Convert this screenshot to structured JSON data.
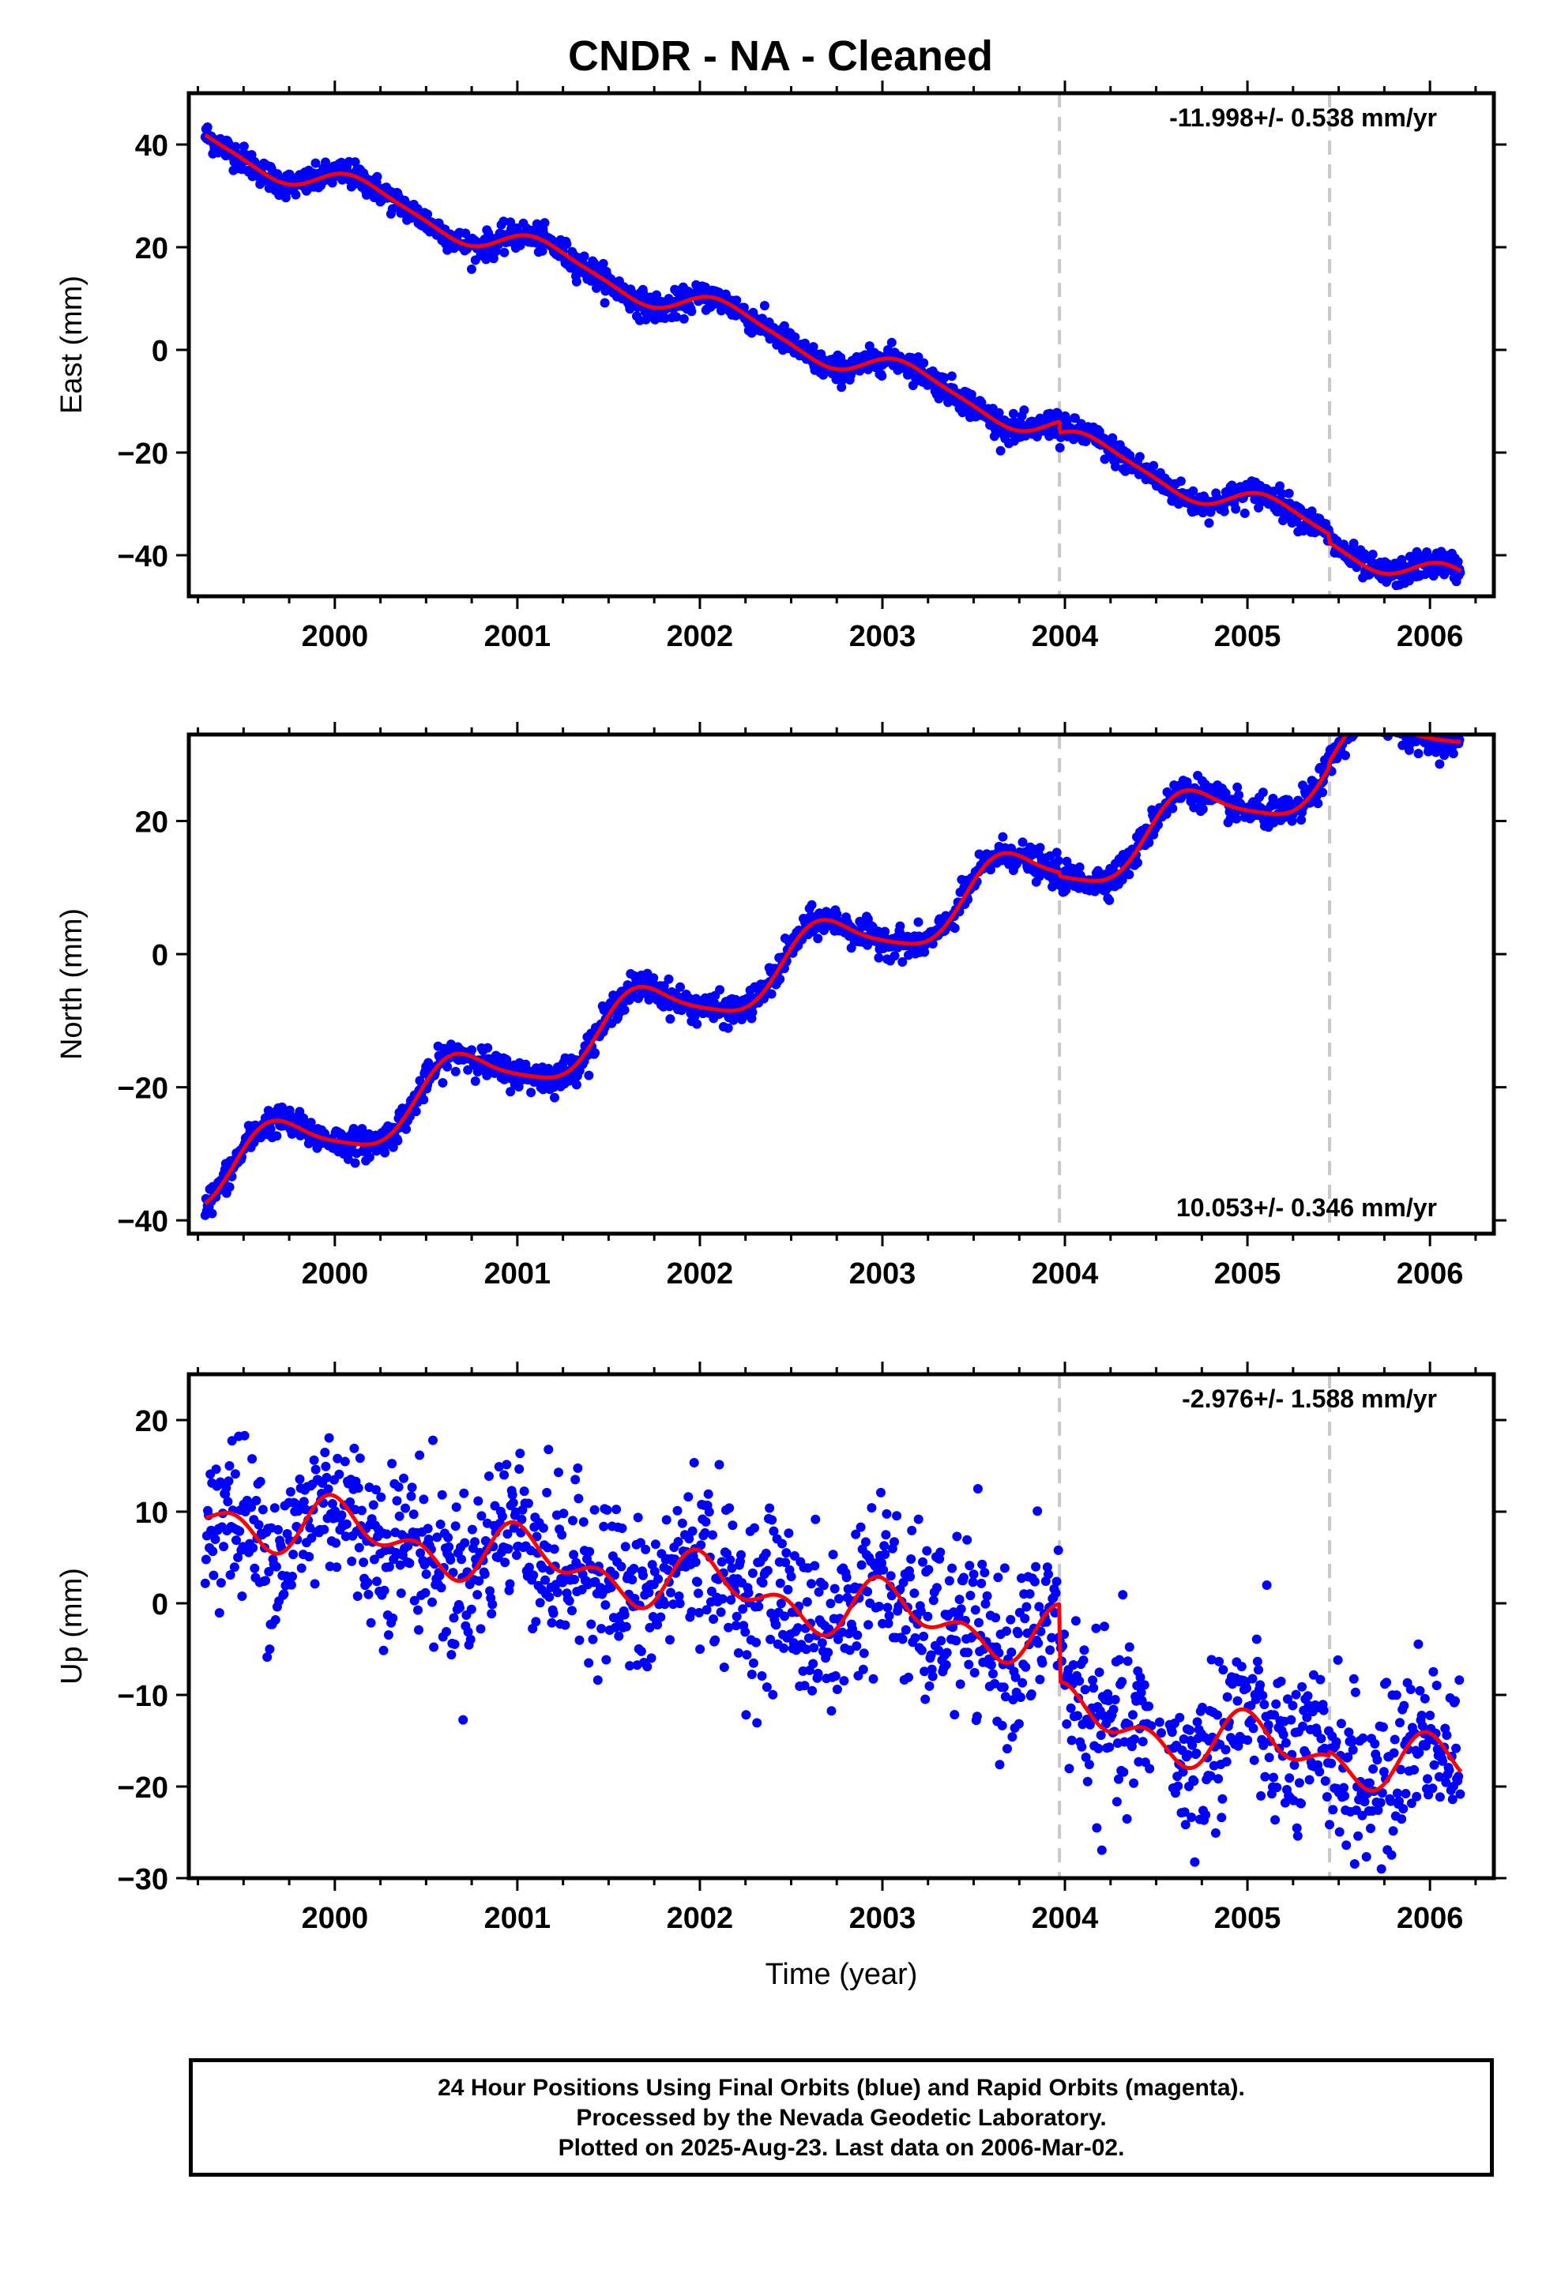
{
  "title": "CNDR  - NA - Cleaned",
  "footer": {
    "line1": "24 Hour Positions Using Final Orbits (blue) and Rapid Orbits (magenta).",
    "line2": "Processed by the Nevada Geodetic Laboratory.",
    "line3": "Plotted on 2025-Aug-23. Last data on 2006-Mar-02."
  },
  "colors": {
    "data": "#0000ff",
    "model": "#ff0000",
    "event_lines": "#c8c8c8",
    "axes": "#000000"
  },
  "chart_data": [
    {
      "type": "scatter",
      "component": "east",
      "ylabel": "East (mm)",
      "xlim": [
        1999.2,
        2006.35
      ],
      "ylim": [
        -48,
        50
      ],
      "yticks": [
        -40,
        -20,
        0,
        20,
        40
      ],
      "xticks": [
        2000,
        2001,
        2002,
        2003,
        2004,
        2005,
        2006
      ],
      "rate_label": "-11.998+/- 0.538 mm/yr",
      "rate_position": "top-right",
      "event_lines": [
        2003.97,
        2005.45
      ],
      "trend": {
        "rate": -12.0,
        "t0": 1999.3,
        "intercept": 40.5,
        "annual_amp": 2.8,
        "annual_phase": 0.6,
        "semiannual_amp": 0.6,
        "semiannual_phase": 1.2,
        "offsets": [
          [
            2003.97,
            -2.2
          ],
          [
            2005.45,
            -1.6
          ]
        ]
      },
      "noise_sd": 1.3,
      "x_start": 1999.29,
      "x_end": 2006.17,
      "n_points": 1650
    },
    {
      "type": "scatter",
      "component": "north",
      "ylabel": "North (mm)",
      "xlim": [
        1999.2,
        2006.35
      ],
      "ylim": [
        -42,
        33
      ],
      "yticks": [
        -40,
        -20,
        0,
        20
      ],
      "xticks": [
        2000,
        2001,
        2002,
        2003,
        2004,
        2005,
        2006
      ],
      "rate_label": "10.053+/- 0.346 mm/yr",
      "rate_position": "bottom-right",
      "event_lines": [
        2003.97,
        2005.45
      ],
      "trend": {
        "rate": 10.05,
        "t0": 1999.3,
        "intercept": -33.5,
        "annual_amp": 4.3,
        "annual_phase": 3.6,
        "semiannual_amp": 0.8,
        "semiannual_phase": 0.4,
        "offsets": [
          [
            2003.97,
            -0.6
          ],
          [
            2005.45,
            0.8
          ]
        ]
      },
      "noise_sd": 1.1,
      "x_start": 1999.29,
      "x_end": 2006.17,
      "n_points": 1650
    },
    {
      "type": "scatter",
      "component": "up",
      "ylabel": "Up (mm)",
      "xlabel": "Time (year)",
      "xlim": [
        1999.2,
        2006.35
      ],
      "ylim": [
        -30,
        25
      ],
      "yticks": [
        -30,
        -20,
        -10,
        0,
        10,
        20
      ],
      "xticks": [
        2000,
        2001,
        2002,
        2003,
        2004,
        2005,
        2006
      ],
      "rate_label": "-2.976+/- 1.588 mm/yr",
      "rate_position": "top-right",
      "event_lines": [
        2003.97,
        2005.45
      ],
      "trend": {
        "rate": -2.98,
        "t0": 1999.3,
        "intercept": 10.0,
        "annual_amp": 2.3,
        "annual_phase": 1.2,
        "semiannual_amp": 1.9,
        "semiannual_phase": 2.1,
        "offsets": [
          [
            2003.97,
            -8.5
          ],
          [
            2005.45,
            0.5
          ]
        ]
      },
      "noise_sd": 4.5,
      "x_start": 1999.29,
      "x_end": 2006.17,
      "n_points": 1500
    }
  ]
}
